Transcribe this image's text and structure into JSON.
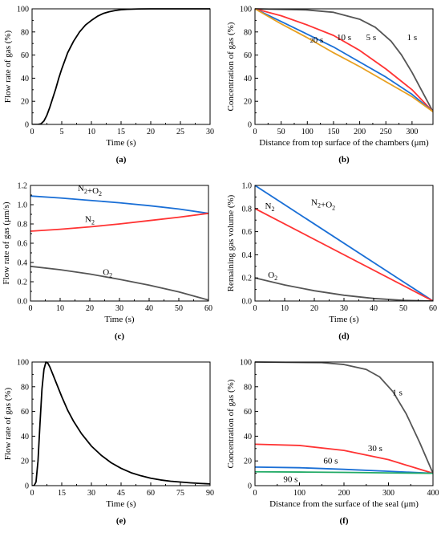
{
  "chart_data": [
    {
      "id": "a",
      "type": "line",
      "panel_label": "(a)",
      "xlabel": "Time (s)",
      "ylabel": "Flow rate of gas (%)",
      "xlim": [
        0,
        30
      ],
      "ylim": [
        0,
        100
      ],
      "xticks": [
        "0",
        "5",
        "10",
        "15",
        "20",
        "25",
        "30"
      ],
      "yticks": [
        "0",
        "20",
        "40",
        "60",
        "80",
        "100"
      ],
      "series": [
        {
          "color": "#000000",
          "x": [
            0,
            1,
            1.5,
            2,
            2.5,
            3,
            3.5,
            4,
            4.5,
            5,
            5.5,
            6,
            7,
            8,
            9,
            10,
            11,
            12,
            13,
            14,
            15,
            16,
            18,
            20,
            22,
            25,
            30
          ],
          "y": [
            0,
            0,
            0.5,
            3,
            8,
            15,
            23,
            31,
            40,
            48,
            55,
            62,
            72,
            80,
            86,
            90,
            93.5,
            96,
            97.5,
            98.5,
            99.2,
            99.6,
            99.9,
            100,
            100,
            100,
            100
          ]
        }
      ],
      "annotations": []
    },
    {
      "id": "b",
      "type": "line",
      "panel_label": "(b)",
      "xlabel": "Distance from top surface of the chambers (μm)",
      "ylabel": "Concentration of gas (%)",
      "xlim": [
        0,
        340
      ],
      "ylim": [
        0,
        100
      ],
      "xticks": [
        "0",
        "50",
        "100",
        "150",
        "200",
        "250",
        "300"
      ],
      "yticks": [
        "0",
        "20",
        "40",
        "60",
        "80",
        "100"
      ],
      "series": [
        {
          "color": "#555555",
          "x": [
            0,
            100,
            150,
            200,
            230,
            260,
            280,
            300,
            320,
            340
          ],
          "y": [
            100,
            99,
            97,
            91,
            84,
            72,
            60,
            45,
            28,
            11
          ]
        },
        {
          "color": "#ff3333",
          "x": [
            0,
            50,
            100,
            150,
            200,
            250,
            300,
            340
          ],
          "y": [
            100,
            94,
            86,
            77,
            64,
            48,
            30,
            11
          ]
        },
        {
          "color": "#1a6fd6",
          "x": [
            0,
            50,
            100,
            150,
            200,
            250,
            300,
            340
          ],
          "y": [
            100,
            89,
            78,
            67,
            54,
            41,
            26,
            11
          ]
        },
        {
          "color": "#e8a020",
          "x": [
            0,
            50,
            100,
            150,
            200,
            250,
            300,
            340
          ],
          "y": [
            100,
            87,
            75,
            62,
            50,
            37,
            24,
            11
          ]
        }
      ],
      "annotations": [
        {
          "text": "1 s",
          "x": 300,
          "y": 73
        },
        {
          "text": "5 s",
          "x": 222,
          "y": 73
        },
        {
          "text": "10 s",
          "x": 170,
          "y": 73
        },
        {
          "text": "20 s",
          "x": 118,
          "y": 73
        }
      ]
    },
    {
      "id": "c",
      "type": "line",
      "panel_label": "(c)",
      "xlabel": "Time (s)",
      "ylabel": "Flow rate of gas (μm/s)",
      "xlim": [
        0,
        60
      ],
      "ylim": [
        0,
        1.2
      ],
      "xticks": [
        "0",
        "10",
        "20",
        "30",
        "40",
        "50",
        "60"
      ],
      "yticks": [
        "0.0",
        "0.2",
        "0.4",
        "0.6",
        "0.8",
        "1.0",
        "1.2"
      ],
      "series": [
        {
          "color": "#1a6fd6",
          "x": [
            0,
            10,
            20,
            30,
            40,
            50,
            60
          ],
          "y": [
            1.09,
            1.07,
            1.045,
            1.02,
            0.99,
            0.955,
            0.91
          ]
        },
        {
          "color": "#ff3333",
          "x": [
            0,
            10,
            20,
            30,
            40,
            50,
            60
          ],
          "y": [
            0.725,
            0.745,
            0.77,
            0.8,
            0.835,
            0.87,
            0.91
          ]
        },
        {
          "color": "#555555",
          "x": [
            0,
            10,
            20,
            30,
            40,
            50,
            60
          ],
          "y": [
            0.36,
            0.325,
            0.28,
            0.225,
            0.165,
            0.095,
            0.01
          ]
        }
      ],
      "annotations": [
        {
          "text": "N2+O2",
          "x": 20,
          "y": 1.14
        },
        {
          "text": "N2",
          "x": 20,
          "y": 0.82
        },
        {
          "text": "O2",
          "x": 26,
          "y": 0.27
        }
      ]
    },
    {
      "id": "d",
      "type": "line",
      "panel_label": "(d)",
      "xlabel": "Time (s)",
      "ylabel": "Remaining gas volume (%)",
      "xlim": [
        0,
        60
      ],
      "ylim": [
        0,
        1.0
      ],
      "xticks": [
        "0",
        "10",
        "20",
        "30",
        "40",
        "50",
        "60"
      ],
      "yticks": [
        "0.0",
        "0.2",
        "0.4",
        "0.6",
        "0.8",
        "1.0"
      ],
      "series": [
        {
          "color": "#1a6fd6",
          "x": [
            0,
            60
          ],
          "y": [
            1.0,
            0
          ]
        },
        {
          "color": "#ff3333",
          "x": [
            0,
            60
          ],
          "y": [
            0.8,
            0
          ]
        },
        {
          "color": "#555555",
          "x": [
            0,
            10,
            20,
            30,
            40,
            50,
            60
          ],
          "y": [
            0.2,
            0.139,
            0.089,
            0.05,
            0.022,
            0.006,
            0
          ]
        }
      ],
      "annotations": [
        {
          "text": "N2",
          "x": 5,
          "y": 0.8
        },
        {
          "text": "N2+O2",
          "x": 23,
          "y": 0.83
        },
        {
          "text": "O2",
          "x": 6,
          "y": 0.2
        }
      ]
    },
    {
      "id": "e",
      "type": "line",
      "panel_label": "(e)",
      "xlabel": "Time (s)",
      "ylabel": "Flow rate of gas (%)",
      "xlim": [
        0,
        90
      ],
      "ylim": [
        0,
        100
      ],
      "xticks": [
        "0",
        "15",
        "30",
        "45",
        "60",
        "75",
        "90"
      ],
      "yticks": [
        "0",
        "20",
        "40",
        "60",
        "80",
        "100"
      ],
      "series": [
        {
          "color": "#000000",
          "x": [
            0,
            1,
            2,
            3,
            4,
            5,
            6,
            7,
            8,
            9,
            10,
            12,
            15,
            18,
            21,
            25,
            30,
            35,
            40,
            45,
            50,
            55,
            60,
            65,
            70,
            75,
            80,
            85,
            90
          ],
          "y": [
            0,
            0,
            3,
            20,
            50,
            78,
            94,
            100,
            99,
            96,
            92,
            84,
            72,
            61,
            52,
            42,
            32,
            24.5,
            18.5,
            14,
            10.5,
            8,
            6,
            4.6,
            3.6,
            2.9,
            2.3,
            1.8,
            1.4
          ]
        }
      ],
      "annotations": []
    },
    {
      "id": "f",
      "type": "line",
      "panel_label": "(f)",
      "xlabel": "Distance from the surface of the seal (μm)",
      "ylabel": "Concentration of gas (%)",
      "xlim": [
        0,
        400
      ],
      "ylim": [
        0,
        100
      ],
      "xticks": [
        "0",
        "100",
        "200",
        "300",
        "400"
      ],
      "yticks": [
        "0",
        "20",
        "40",
        "60",
        "80",
        "100"
      ],
      "series": [
        {
          "color": "#555555",
          "x": [
            0,
            150,
            200,
            250,
            280,
            310,
            340,
            370,
            400
          ],
          "y": [
            100,
            99.5,
            98,
            94,
            88,
            76,
            58,
            35,
            10
          ]
        },
        {
          "color": "#ff3333",
          "x": [
            0,
            100,
            200,
            300,
            400
          ],
          "y": [
            33.5,
            32.5,
            28.5,
            21,
            10
          ]
        },
        {
          "color": "#1a6fd6",
          "x": [
            0,
            100,
            200,
            300,
            400
          ],
          "y": [
            15,
            14.5,
            13.2,
            11.6,
            10
          ]
        },
        {
          "color": "#22aa66",
          "x": [
            0,
            100,
            200,
            300,
            400
          ],
          "y": [
            11.2,
            11,
            10.7,
            10.3,
            10
          ]
        }
      ],
      "annotations": [
        {
          "text": "1 s",
          "x": 320,
          "y": 73
        },
        {
          "text": "30 s",
          "x": 270,
          "y": 28
        },
        {
          "text": "60 s",
          "x": 170,
          "y": 18
        },
        {
          "text": "90 s",
          "x": 80,
          "y": 3
        }
      ]
    }
  ]
}
